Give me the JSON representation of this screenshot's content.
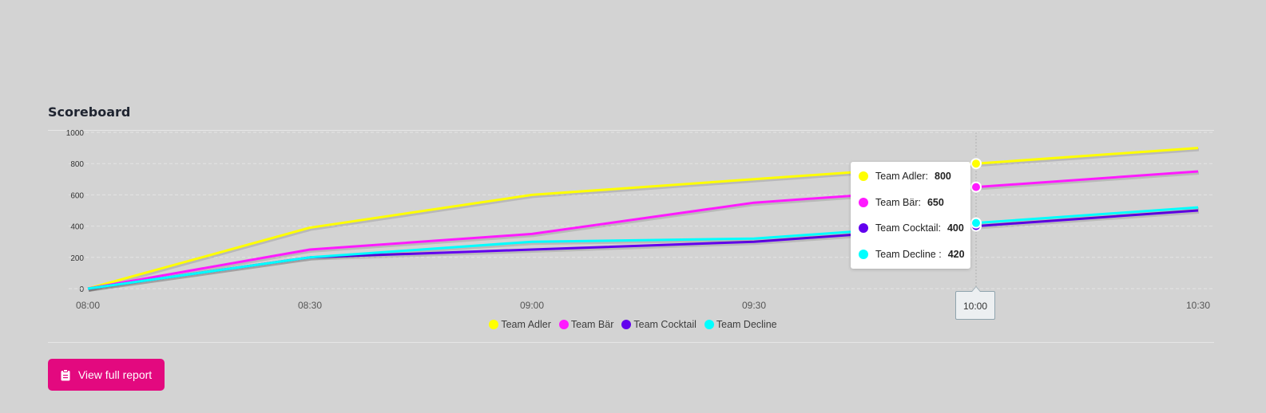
{
  "card": {
    "title": "Scoreboard"
  },
  "chart_data": {
    "type": "line",
    "x": [
      "08:00",
      "08:30",
      "09:00",
      "09:30",
      "10:00",
      "10:30"
    ],
    "series": [
      {
        "name": "Team Adler",
        "color": "#ffff00",
        "values": [
          0,
          390,
          600,
          700,
          800,
          900
        ]
      },
      {
        "name": "Team Bär",
        "color": "#ff1aff",
        "values": [
          0,
          250,
          350,
          550,
          650,
          750
        ]
      },
      {
        "name": "Team Cocktail",
        "color": "#6200ee",
        "values": [
          0,
          200,
          250,
          300,
          400,
          500
        ]
      },
      {
        "name": "Team Decline ",
        "color": "#00ffff",
        "values": [
          0,
          200,
          300,
          320,
          420,
          520
        ]
      }
    ],
    "legend_labels": [
      "Team Adler",
      "Team Bär",
      "Team Cocktail",
      "Team Decline"
    ],
    "yticks": [
      0,
      200,
      400,
      600,
      800,
      1000
    ],
    "ylim": [
      0,
      1000
    ],
    "grid": true,
    "legend_position": "bottom-center",
    "tooltip": {
      "x": "10:00",
      "index": 4,
      "rows": [
        {
          "label": "Team Adler:",
          "value": "800",
          "color": "#ffff00"
        },
        {
          "label": "Team Bär:",
          "value": "650",
          "color": "#ff1aff"
        },
        {
          "label": "Team Cocktail:",
          "value": "400",
          "color": "#6200ee"
        },
        {
          "label": "Team Decline :",
          "value": "420",
          "color": "#00ffff"
        }
      ]
    }
  },
  "actions": {
    "report_label": "View full report",
    "report_icon": "clipboard-icon"
  }
}
